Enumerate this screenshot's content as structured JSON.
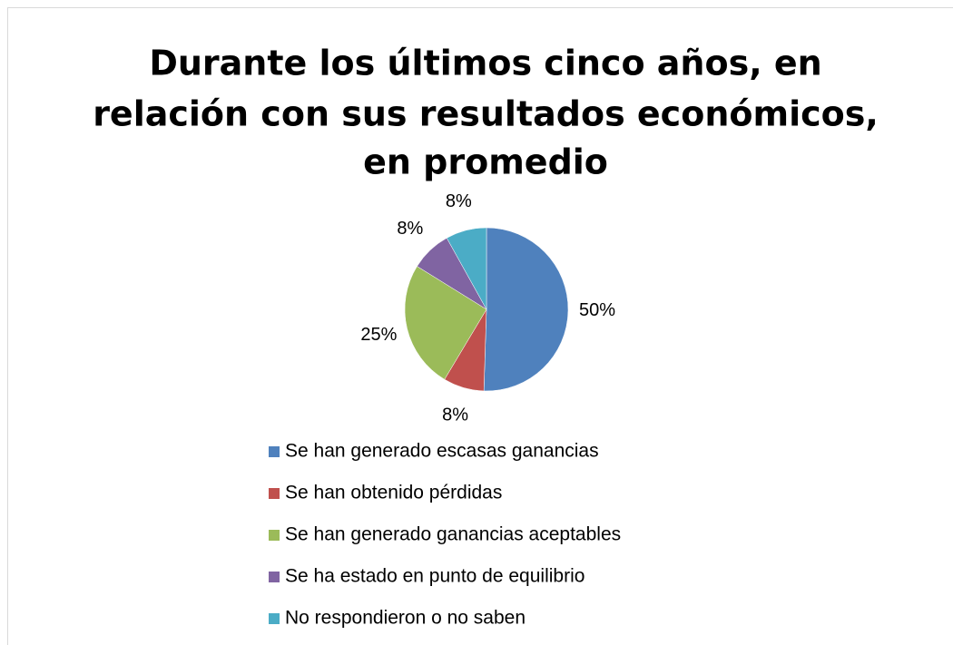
{
  "chart_data": {
    "type": "pie",
    "title": [
      "Durante los últimos cinco años, en",
      "relación con sus resultados económicos,",
      "en promedio"
    ],
    "categories": [
      "Se han generado escasas ganancias",
      "Se han obtenido pérdidas",
      "Se han generado ganancias aceptables",
      "Se ha estado en punto de equilibrio",
      "No respondieron o no saben"
    ],
    "values": [
      50,
      8,
      25,
      8,
      8
    ],
    "value_labels": [
      "50%",
      "8%",
      "25%",
      "8%",
      "8%"
    ],
    "colors": [
      "#4f81bd",
      "#c0504d",
      "#9bbb59",
      "#8064a2",
      "#4bacc6"
    ],
    "legend": "bottom"
  }
}
